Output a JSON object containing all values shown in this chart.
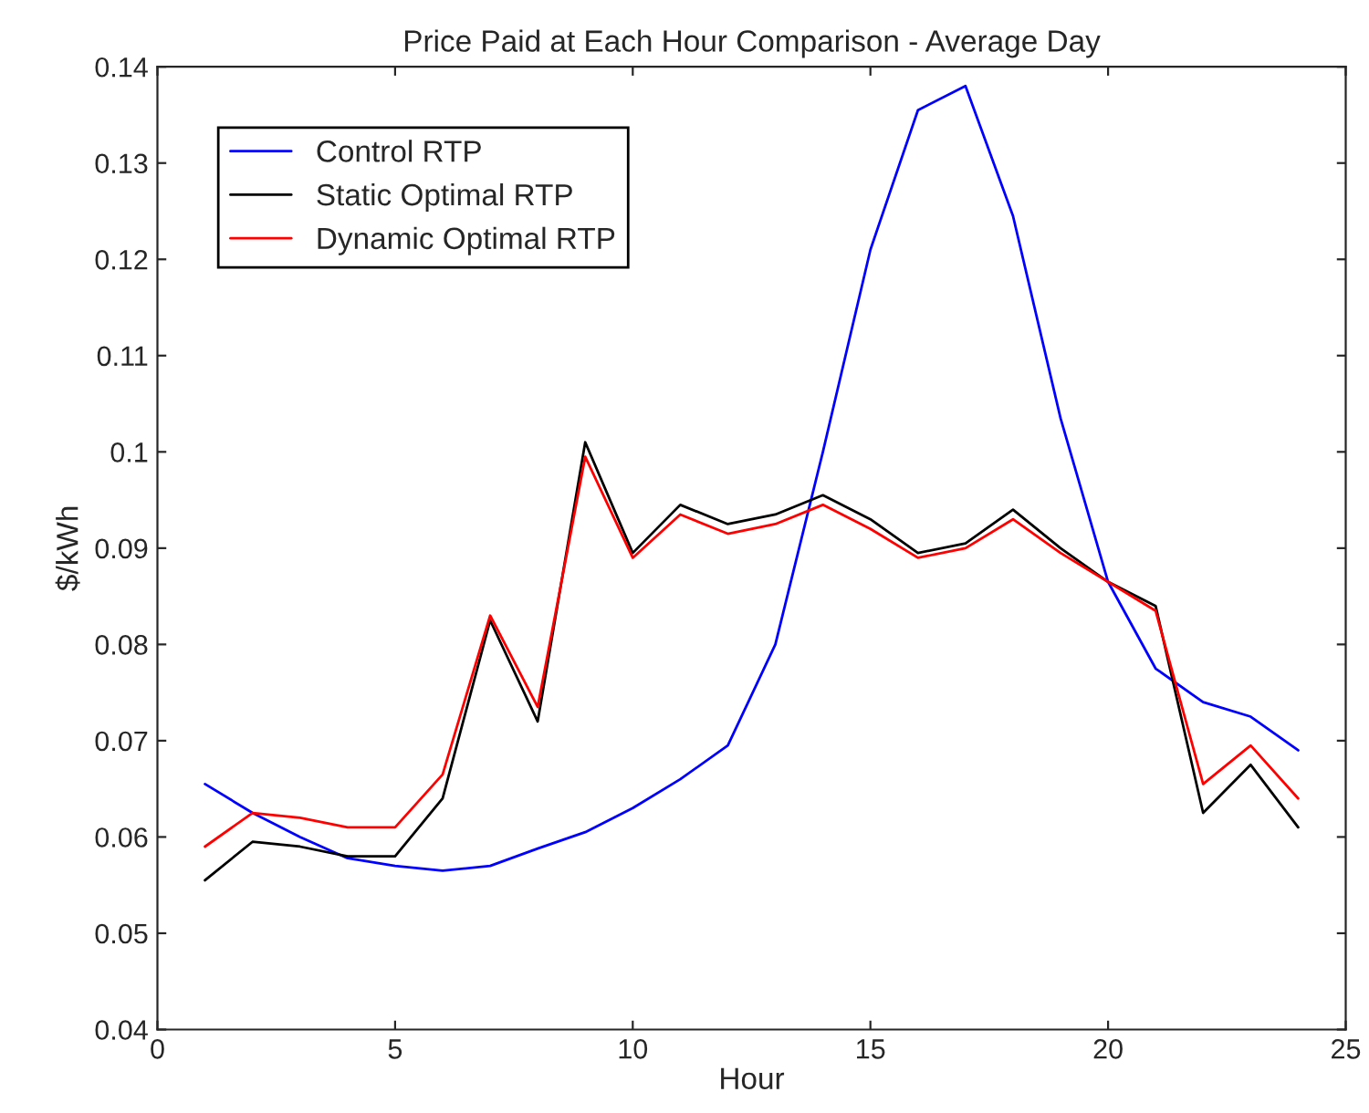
{
  "chart_data": {
    "type": "line",
    "title": "Price Paid at Each Hour Comparison - Average Day",
    "xlabel": "Hour",
    "ylabel": "$/kWh",
    "x": [
      1,
      2,
      3,
      4,
      5,
      6,
      7,
      8,
      9,
      10,
      11,
      12,
      13,
      14,
      15,
      16,
      17,
      18,
      19,
      20,
      21,
      22,
      23,
      24
    ],
    "series": [
      {
        "name": "Control RTP",
        "color": "#0000ff",
        "values": [
          0.0655,
          0.0625,
          0.06,
          0.0578,
          0.057,
          0.0565,
          0.057,
          0.0588,
          0.0605,
          0.063,
          0.066,
          0.0695,
          0.08,
          0.1,
          0.121,
          0.1355,
          0.138,
          0.1245,
          0.1035,
          0.0865,
          0.0775,
          0.074,
          0.0725,
          0.069
        ]
      },
      {
        "name": "Static Optimal RTP",
        "color": "#000000",
        "values": [
          0.0555,
          0.0595,
          0.059,
          0.058,
          0.058,
          0.064,
          0.0825,
          0.072,
          0.101,
          0.0895,
          0.0945,
          0.0925,
          0.0935,
          0.0955,
          0.093,
          0.0895,
          0.0905,
          0.094,
          0.09,
          0.0865,
          0.084,
          0.0625,
          0.0675,
          0.061
        ]
      },
      {
        "name": "Dynamic Optimal RTP",
        "color": "#ff0000",
        "values": [
          0.059,
          0.0625,
          0.062,
          0.061,
          0.061,
          0.0665,
          0.083,
          0.0735,
          0.0995,
          0.089,
          0.0935,
          0.0915,
          0.0925,
          0.0945,
          0.092,
          0.089,
          0.09,
          0.093,
          0.0895,
          0.0865,
          0.0835,
          0.0655,
          0.0695,
          0.064
        ]
      }
    ],
    "xlim": [
      0,
      25
    ],
    "xticks": [
      0,
      5,
      10,
      15,
      20,
      25
    ],
    "ylim": [
      0.04,
      0.14
    ],
    "yticks": [
      0.04,
      0.05,
      0.06,
      0.07,
      0.08,
      0.09,
      0.1,
      0.11,
      0.12,
      0.13,
      0.14
    ],
    "grid": false,
    "legend": "top left",
    "marker": "none",
    "line_style": "solid"
  }
}
